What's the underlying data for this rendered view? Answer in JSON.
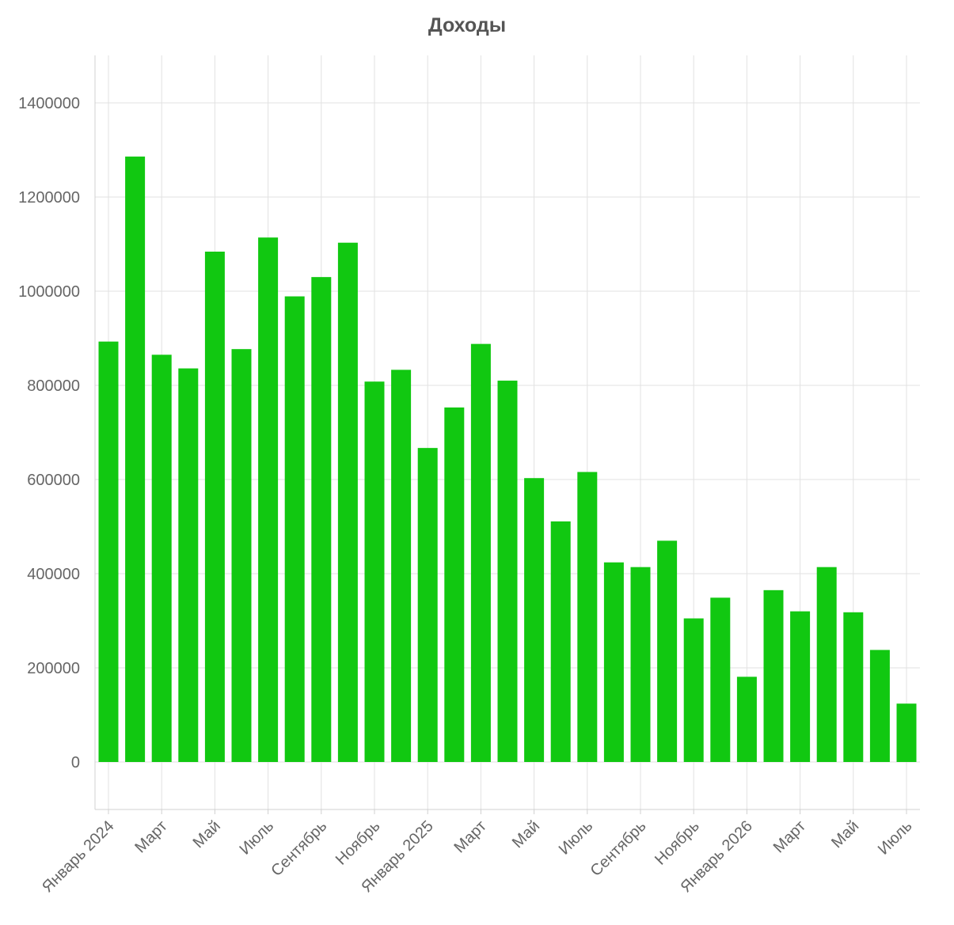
{
  "chart_data": {
    "type": "bar",
    "title": "Доходы",
    "xlabel": "",
    "ylabel": "",
    "color": "#11c811",
    "ylim": [
      -100000,
      1500000
    ],
    "y_ticks": [
      0,
      200000,
      400000,
      600000,
      800000,
      1000000,
      1200000,
      1400000
    ],
    "grid": true,
    "legend": "none",
    "categories": [
      "2024-01",
      "2024-02",
      "2024-03",
      "2024-04",
      "2024-05",
      "2024-06",
      "2024-07",
      "2024-08",
      "2024-09",
      "2024-10",
      "2024-11",
      "2024-12",
      "2025-01",
      "2025-02",
      "2025-03",
      "2025-04",
      "2025-05",
      "2025-06",
      "2025-07",
      "2025-08",
      "2025-09",
      "2025-10",
      "2025-11",
      "2025-12",
      "2026-01",
      "2026-02",
      "2026-03",
      "2026-04",
      "2026-05",
      "2026-06",
      "2026-07"
    ],
    "x_tick_labels": [
      {
        "category": "2024-01",
        "label": "Январь 2024"
      },
      {
        "category": "2024-03",
        "label": "Март"
      },
      {
        "category": "2024-05",
        "label": "Май"
      },
      {
        "category": "2024-07",
        "label": "Июль"
      },
      {
        "category": "2024-09",
        "label": "Сентябрь"
      },
      {
        "category": "2024-11",
        "label": "Ноябрь"
      },
      {
        "category": "2025-01",
        "label": "Январь 2025"
      },
      {
        "category": "2025-03",
        "label": "Март"
      },
      {
        "category": "2025-05",
        "label": "Май"
      },
      {
        "category": "2025-07",
        "label": "Июль"
      },
      {
        "category": "2025-09",
        "label": "Сентябрь"
      },
      {
        "category": "2025-11",
        "label": "Ноябрь"
      },
      {
        "category": "2026-01",
        "label": "Январь 2026"
      },
      {
        "category": "2026-03",
        "label": "Март"
      },
      {
        "category": "2026-05",
        "label": "Май"
      },
      {
        "category": "2026-07",
        "label": "Июль"
      }
    ],
    "values": [
      893000,
      1286000,
      865000,
      836000,
      1084000,
      877000,
      1114000,
      989000,
      1030000,
      1103000,
      808000,
      833000,
      667000,
      753000,
      888000,
      810000,
      603000,
      511000,
      616000,
      424000,
      414000,
      470000,
      305000,
      349000,
      181000,
      365000,
      320000,
      414000,
      318000,
      238000,
      124000
    ]
  }
}
